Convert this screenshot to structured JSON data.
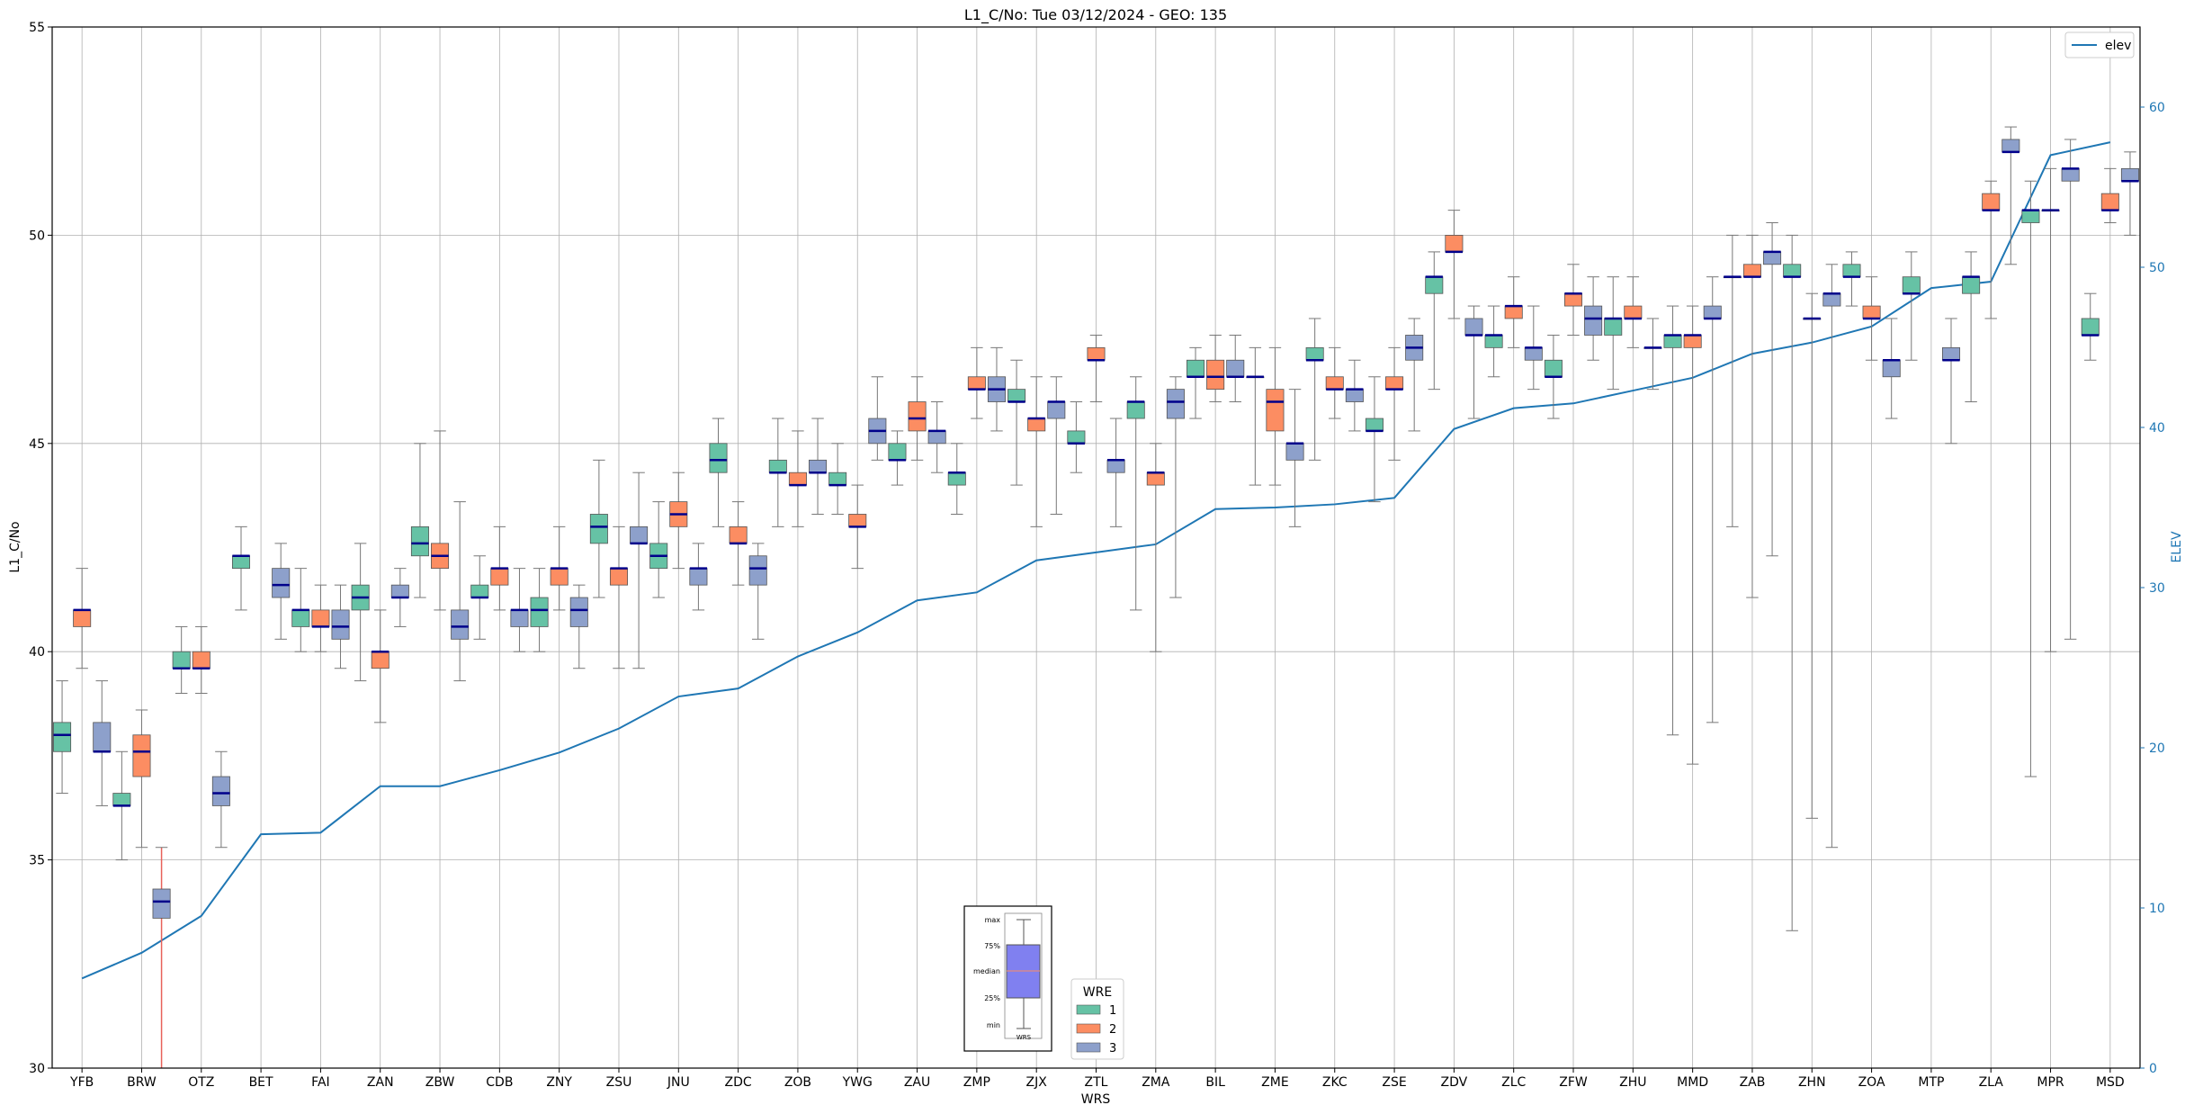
{
  "chart_data": {
    "type": "boxplot",
    "title": "L1_C/No: Tue 03/12/2024 - GEO: 135",
    "xlabel": "WRS",
    "ylabel": "L1_C/No",
    "y2label": "ELEV",
    "ylim": [
      30,
      55
    ],
    "y2lim": [
      0,
      65
    ],
    "yticks": [
      30,
      35,
      40,
      45,
      50,
      55
    ],
    "y2ticks": [
      0,
      10,
      20,
      30,
      40,
      50,
      60
    ],
    "grid": true,
    "categories": [
      "YFB",
      "BRW",
      "OTZ",
      "BET",
      "FAI",
      "ZAN",
      "ZBW",
      "CDB",
      "ZNY",
      "ZSU",
      "JNU",
      "ZDC",
      "ZOB",
      "YWG",
      "ZAU",
      "ZMP",
      "ZJX",
      "ZTL",
      "ZMA",
      "BIL",
      "ZME",
      "ZKC",
      "ZSE",
      "ZDV",
      "ZLC",
      "ZFW",
      "ZHU",
      "MMD",
      "ZAB",
      "ZHN",
      "ZOA",
      "MTP",
      "ZLA",
      "MPR",
      "MSD"
    ],
    "wre_colors": {
      "1": "#66c2a5",
      "2": "#fc8d62",
      "3": "#8da0cb"
    },
    "boxes": [
      {
        "cat": "YFB",
        "wre": 1,
        "min": 36.6,
        "q1": 37.6,
        "med": 38.0,
        "q3": 38.3,
        "max": 39.3
      },
      {
        "cat": "YFB",
        "wre": 2,
        "min": 39.6,
        "q1": 40.6,
        "med": 41.0,
        "q3": 41.0,
        "max": 42.0
      },
      {
        "cat": "YFB",
        "wre": 3,
        "min": 36.3,
        "q1": 37.6,
        "med": 37.6,
        "q3": 38.3,
        "max": 39.3
      },
      {
        "cat": "BRW",
        "wre": 1,
        "min": 35.0,
        "q1": 36.3,
        "med": 36.3,
        "q3": 36.6,
        "max": 37.6
      },
      {
        "cat": "BRW",
        "wre": 2,
        "min": 35.3,
        "q1": 37.0,
        "med": 37.6,
        "q3": 38.0,
        "max": 38.6
      },
      {
        "cat": "BRW",
        "wre": 3,
        "min": 30.0,
        "q1": 33.6,
        "med": 34.0,
        "q3": 34.3,
        "max": 35.3,
        "outlier": true
      },
      {
        "cat": "OTZ",
        "wre": 1,
        "min": 39.0,
        "q1": 39.6,
        "med": 39.6,
        "q3": 40.0,
        "max": 40.6
      },
      {
        "cat": "OTZ",
        "wre": 2,
        "min": 39.0,
        "q1": 39.6,
        "med": 39.6,
        "q3": 40.0,
        "max": 40.6
      },
      {
        "cat": "OTZ",
        "wre": 3,
        "min": 35.3,
        "q1": 36.3,
        "med": 36.6,
        "q3": 37.0,
        "max": 37.6
      },
      {
        "cat": "BET",
        "wre": 1,
        "min": 41.0,
        "q1": 42.0,
        "med": 42.3,
        "q3": 42.3,
        "max": 43.0
      },
      {
        "cat": "BET",
        "wre": 3,
        "min": 40.3,
        "q1": 41.3,
        "med": 41.6,
        "q3": 42.0,
        "max": 42.6
      },
      {
        "cat": "FAI",
        "wre": 1,
        "min": 40.0,
        "q1": 40.6,
        "med": 41.0,
        "q3": 41.0,
        "max": 42.0
      },
      {
        "cat": "FAI",
        "wre": 2,
        "min": 40.0,
        "q1": 40.6,
        "med": 40.6,
        "q3": 41.0,
        "max": 41.6
      },
      {
        "cat": "FAI",
        "wre": 3,
        "min": 39.6,
        "q1": 40.3,
        "med": 40.6,
        "q3": 41.0,
        "max": 41.6
      },
      {
        "cat": "ZAN",
        "wre": 1,
        "min": 39.3,
        "q1": 41.0,
        "med": 41.3,
        "q3": 41.6,
        "max": 42.6
      },
      {
        "cat": "ZAN",
        "wre": 2,
        "min": 38.3,
        "q1": 39.6,
        "med": 40.0,
        "q3": 40.0,
        "max": 41.0
      },
      {
        "cat": "ZAN",
        "wre": 3,
        "min": 40.6,
        "q1": 41.3,
        "med": 41.3,
        "q3": 41.6,
        "max": 42.0
      },
      {
        "cat": "ZBW",
        "wre": 1,
        "min": 41.3,
        "q1": 42.3,
        "med": 42.6,
        "q3": 43.0,
        "max": 45.0
      },
      {
        "cat": "ZBW",
        "wre": 2,
        "min": 41.0,
        "q1": 42.0,
        "med": 42.3,
        "q3": 42.6,
        "max": 45.3
      },
      {
        "cat": "ZBW",
        "wre": 3,
        "min": 39.3,
        "q1": 40.3,
        "med": 40.6,
        "q3": 41.0,
        "max": 43.6
      },
      {
        "cat": "CDB",
        "wre": 1,
        "min": 40.3,
        "q1": 41.3,
        "med": 41.3,
        "q3": 41.6,
        "max": 42.3
      },
      {
        "cat": "CDB",
        "wre": 2,
        "min": 41.0,
        "q1": 41.6,
        "med": 42.0,
        "q3": 42.0,
        "max": 43.0
      },
      {
        "cat": "CDB",
        "wre": 3,
        "min": 40.0,
        "q1": 40.6,
        "med": 41.0,
        "q3": 41.0,
        "max": 42.0
      },
      {
        "cat": "ZNY",
        "wre": 1,
        "min": 40.0,
        "q1": 40.6,
        "med": 41.0,
        "q3": 41.3,
        "max": 42.0
      },
      {
        "cat": "ZNY",
        "wre": 2,
        "min": 41.0,
        "q1": 41.6,
        "med": 42.0,
        "q3": 42.0,
        "max": 43.0
      },
      {
        "cat": "ZNY",
        "wre": 3,
        "min": 39.6,
        "q1": 40.6,
        "med": 41.0,
        "q3": 41.3,
        "max": 41.6
      },
      {
        "cat": "ZSU",
        "wre": 1,
        "min": 41.3,
        "q1": 42.6,
        "med": 43.0,
        "q3": 43.3,
        "max": 44.6
      },
      {
        "cat": "ZSU",
        "wre": 2,
        "min": 39.6,
        "q1": 41.6,
        "med": 42.0,
        "q3": 42.0,
        "max": 43.0
      },
      {
        "cat": "ZSU",
        "wre": 3,
        "min": 39.6,
        "q1": 42.6,
        "med": 42.6,
        "q3": 43.0,
        "max": 44.3
      },
      {
        "cat": "JNU",
        "wre": 1,
        "min": 41.3,
        "q1": 42.0,
        "med": 42.3,
        "q3": 42.6,
        "max": 43.6
      },
      {
        "cat": "JNU",
        "wre": 2,
        "min": 42.0,
        "q1": 43.0,
        "med": 43.3,
        "q3": 43.6,
        "max": 44.3
      },
      {
        "cat": "JNU",
        "wre": 3,
        "min": 41.0,
        "q1": 41.6,
        "med": 42.0,
        "q3": 42.0,
        "max": 42.6
      },
      {
        "cat": "ZDC",
        "wre": 1,
        "min": 43.0,
        "q1": 44.3,
        "med": 44.6,
        "q3": 45.0,
        "max": 45.6
      },
      {
        "cat": "ZDC",
        "wre": 2,
        "min": 41.6,
        "q1": 42.6,
        "med": 42.6,
        "q3": 43.0,
        "max": 43.6
      },
      {
        "cat": "ZDC",
        "wre": 3,
        "min": 40.3,
        "q1": 41.6,
        "med": 42.0,
        "q3": 42.3,
        "max": 42.6
      },
      {
        "cat": "ZOB",
        "wre": 1,
        "min": 43.0,
        "q1": 44.3,
        "med": 44.3,
        "q3": 44.6,
        "max": 45.6
      },
      {
        "cat": "ZOB",
        "wre": 2,
        "min": 43.0,
        "q1": 44.0,
        "med": 44.0,
        "q3": 44.3,
        "max": 45.3
      },
      {
        "cat": "ZOB",
        "wre": 3,
        "min": 43.3,
        "q1": 44.3,
        "med": 44.3,
        "q3": 44.6,
        "max": 45.6
      },
      {
        "cat": "YWG",
        "wre": 1,
        "min": 43.3,
        "q1": 44.0,
        "med": 44.0,
        "q3": 44.3,
        "max": 45.0
      },
      {
        "cat": "YWG",
        "wre": 2,
        "min": 42.0,
        "q1": 43.0,
        "med": 43.0,
        "q3": 43.3,
        "max": 44.0
      },
      {
        "cat": "YWG",
        "wre": 3,
        "min": 44.6,
        "q1": 45.0,
        "med": 45.3,
        "q3": 45.6,
        "max": 46.6
      },
      {
        "cat": "ZAU",
        "wre": 1,
        "min": 44.0,
        "q1": 44.6,
        "med": 44.6,
        "q3": 45.0,
        "max": 45.3
      },
      {
        "cat": "ZAU",
        "wre": 2,
        "min": 44.6,
        "q1": 45.3,
        "med": 45.6,
        "q3": 46.0,
        "max": 46.6
      },
      {
        "cat": "ZAU",
        "wre": 3,
        "min": 44.3,
        "q1": 45.0,
        "med": 45.3,
        "q3": 45.3,
        "max": 46.0
      },
      {
        "cat": "ZMP",
        "wre": 1,
        "min": 43.3,
        "q1": 44.0,
        "med": 44.3,
        "q3": 44.3,
        "max": 45.0
      },
      {
        "cat": "ZMP",
        "wre": 2,
        "min": 45.6,
        "q1": 46.3,
        "med": 46.3,
        "q3": 46.6,
        "max": 47.3
      },
      {
        "cat": "ZMP",
        "wre": 3,
        "min": 45.3,
        "q1": 46.0,
        "med": 46.3,
        "q3": 46.6,
        "max": 47.3
      },
      {
        "cat": "ZJX",
        "wre": 1,
        "min": 44.0,
        "q1": 46.0,
        "med": 46.0,
        "q3": 46.3,
        "max": 47.0
      },
      {
        "cat": "ZJX",
        "wre": 2,
        "min": 43.0,
        "q1": 45.3,
        "med": 45.6,
        "q3": 45.6,
        "max": 46.6
      },
      {
        "cat": "ZJX",
        "wre": 3,
        "min": 43.3,
        "q1": 45.6,
        "med": 46.0,
        "q3": 46.0,
        "max": 46.6
      },
      {
        "cat": "ZTL",
        "wre": 1,
        "min": 44.3,
        "q1": 45.0,
        "med": 45.0,
        "q3": 45.3,
        "max": 46.0
      },
      {
        "cat": "ZTL",
        "wre": 2,
        "min": 46.0,
        "q1": 47.0,
        "med": 47.0,
        "q3": 47.3,
        "max": 47.6
      },
      {
        "cat": "ZTL",
        "wre": 3,
        "min": 43.0,
        "q1": 44.3,
        "med": 44.6,
        "q3": 44.6,
        "max": 45.6
      },
      {
        "cat": "ZMA",
        "wre": 1,
        "min": 41.0,
        "q1": 45.6,
        "med": 46.0,
        "q3": 46.0,
        "max": 46.6
      },
      {
        "cat": "ZMA",
        "wre": 2,
        "min": 40.0,
        "q1": 44.0,
        "med": 44.3,
        "q3": 44.3,
        "max": 45.0
      },
      {
        "cat": "ZMA",
        "wre": 3,
        "min": 41.3,
        "q1": 45.6,
        "med": 46.0,
        "q3": 46.3,
        "max": 46.6
      },
      {
        "cat": "BIL",
        "wre": 1,
        "min": 45.6,
        "q1": 46.6,
        "med": 46.6,
        "q3": 47.0,
        "max": 47.3
      },
      {
        "cat": "BIL",
        "wre": 2,
        "min": 46.0,
        "q1": 46.3,
        "med": 46.6,
        "q3": 47.0,
        "max": 47.6
      },
      {
        "cat": "BIL",
        "wre": 3,
        "min": 46.0,
        "q1": 46.6,
        "med": 46.6,
        "q3": 47.0,
        "max": 47.6
      },
      {
        "cat": "ZME",
        "wre": 1,
        "min": 44.0,
        "q1": 46.6,
        "med": 46.6,
        "q3": 46.6,
        "max": 47.3
      },
      {
        "cat": "ZME",
        "wre": 2,
        "min": 44.0,
        "q1": 45.3,
        "med": 46.0,
        "q3": 46.3,
        "max": 47.3
      },
      {
        "cat": "ZME",
        "wre": 3,
        "min": 43.0,
        "q1": 44.6,
        "med": 45.0,
        "q3": 45.0,
        "max": 46.3
      },
      {
        "cat": "ZKC",
        "wre": 1,
        "min": 44.6,
        "q1": 47.0,
        "med": 47.0,
        "q3": 47.3,
        "max": 48.0
      },
      {
        "cat": "ZKC",
        "wre": 2,
        "min": 45.6,
        "q1": 46.3,
        "med": 46.3,
        "q3": 46.6,
        "max": 47.3
      },
      {
        "cat": "ZKC",
        "wre": 3,
        "min": 45.3,
        "q1": 46.0,
        "med": 46.3,
        "q3": 46.3,
        "max": 47.0
      },
      {
        "cat": "ZSE",
        "wre": 1,
        "min": 43.6,
        "q1": 45.3,
        "med": 45.3,
        "q3": 45.6,
        "max": 46.6
      },
      {
        "cat": "ZSE",
        "wre": 2,
        "min": 44.6,
        "q1": 46.3,
        "med": 46.3,
        "q3": 46.6,
        "max": 47.3
      },
      {
        "cat": "ZSE",
        "wre": 3,
        "min": 45.3,
        "q1": 47.0,
        "med": 47.3,
        "q3": 47.6,
        "max": 48.0
      },
      {
        "cat": "ZDV",
        "wre": 1,
        "min": 46.3,
        "q1": 48.6,
        "med": 49.0,
        "q3": 49.0,
        "max": 49.6
      },
      {
        "cat": "ZDV",
        "wre": 2,
        "min": 48.0,
        "q1": 49.6,
        "med": 49.6,
        "q3": 50.0,
        "max": 50.6
      },
      {
        "cat": "ZDV",
        "wre": 3,
        "min": 45.6,
        "q1": 47.6,
        "med": 47.6,
        "q3": 48.0,
        "max": 48.3
      },
      {
        "cat": "ZLC",
        "wre": 1,
        "min": 46.6,
        "q1": 47.3,
        "med": 47.6,
        "q3": 47.6,
        "max": 48.3
      },
      {
        "cat": "ZLC",
        "wre": 2,
        "min": 47.3,
        "q1": 48.0,
        "med": 48.3,
        "q3": 48.3,
        "max": 49.0
      },
      {
        "cat": "ZLC",
        "wre": 3,
        "min": 46.3,
        "q1": 47.0,
        "med": 47.3,
        "q3": 47.3,
        "max": 48.3
      },
      {
        "cat": "ZFW",
        "wre": 1,
        "min": 45.6,
        "q1": 46.6,
        "med": 46.6,
        "q3": 47.0,
        "max": 47.6
      },
      {
        "cat": "ZFW",
        "wre": 2,
        "min": 47.6,
        "q1": 48.3,
        "med": 48.6,
        "q3": 48.6,
        "max": 49.3
      },
      {
        "cat": "ZFW",
        "wre": 3,
        "min": 47.0,
        "q1": 47.6,
        "med": 48.0,
        "q3": 48.3,
        "max": 49.0
      },
      {
        "cat": "ZHU",
        "wre": 1,
        "min": 46.3,
        "q1": 47.6,
        "med": 48.0,
        "q3": 48.0,
        "max": 49.0
      },
      {
        "cat": "ZHU",
        "wre": 2,
        "min": 47.3,
        "q1": 48.0,
        "med": 48.0,
        "q3": 48.3,
        "max": 49.0
      },
      {
        "cat": "ZHU",
        "wre": 3,
        "min": 46.3,
        "q1": 47.3,
        "med": 47.3,
        "q3": 47.3,
        "max": 48.0
      },
      {
        "cat": "MMD",
        "wre": 1,
        "min": 38.0,
        "q1": 47.3,
        "med": 47.6,
        "q3": 47.6,
        "max": 48.3
      },
      {
        "cat": "MMD",
        "wre": 2,
        "min": 37.3,
        "q1": 47.3,
        "med": 47.6,
        "q3": 47.6,
        "max": 48.3
      },
      {
        "cat": "MMD",
        "wre": 3,
        "min": 38.3,
        "q1": 48.0,
        "med": 48.0,
        "q3": 48.3,
        "max": 49.0
      },
      {
        "cat": "ZAB",
        "wre": 1,
        "min": 43.0,
        "q1": 49.0,
        "med": 49.0,
        "q3": 49.0,
        "max": 50.0
      },
      {
        "cat": "ZAB",
        "wre": 2,
        "min": 41.3,
        "q1": 49.0,
        "med": 49.0,
        "q3": 49.3,
        "max": 50.0
      },
      {
        "cat": "ZAB",
        "wre": 3,
        "min": 42.3,
        "q1": 49.3,
        "med": 49.6,
        "q3": 49.6,
        "max": 50.3
      },
      {
        "cat": "ZHN",
        "wre": 1,
        "min": 33.3,
        "q1": 49.0,
        "med": 49.0,
        "q3": 49.3,
        "max": 50.0
      },
      {
        "cat": "ZHN",
        "wre": 2,
        "min": 36.0,
        "q1": 48.0,
        "med": 48.0,
        "q3": 48.0,
        "max": 48.6
      },
      {
        "cat": "ZHN",
        "wre": 3,
        "min": 35.3,
        "q1": 48.3,
        "med": 48.6,
        "q3": 48.6,
        "max": 49.3
      },
      {
        "cat": "ZOA",
        "wre": 1,
        "min": 48.3,
        "q1": 49.0,
        "med": 49.0,
        "q3": 49.3,
        "max": 49.6
      },
      {
        "cat": "ZOA",
        "wre": 2,
        "min": 47.0,
        "q1": 48.0,
        "med": 48.0,
        "q3": 48.3,
        "max": 49.0
      },
      {
        "cat": "ZOA",
        "wre": 3,
        "min": 45.6,
        "q1": 46.6,
        "med": 47.0,
        "q3": 47.0,
        "max": 48.0
      },
      {
        "cat": "MTP",
        "wre": 1,
        "min": 47.0,
        "q1": 48.6,
        "med": 48.6,
        "q3": 49.0,
        "max": 49.6
      },
      {
        "cat": "MTP",
        "wre": 3,
        "min": 45.0,
        "q1": 47.0,
        "med": 47.0,
        "q3": 47.3,
        "max": 48.0
      },
      {
        "cat": "ZLA",
        "wre": 1,
        "min": 46.0,
        "q1": 48.6,
        "med": 49.0,
        "q3": 49.0,
        "max": 49.6
      },
      {
        "cat": "ZLA",
        "wre": 2,
        "min": 48.0,
        "q1": 50.6,
        "med": 50.6,
        "q3": 51.0,
        "max": 51.3
      },
      {
        "cat": "ZLA",
        "wre": 3,
        "min": 49.3,
        "q1": 52.0,
        "med": 52.0,
        "q3": 52.3,
        "max": 52.6
      },
      {
        "cat": "MPR",
        "wre": 1,
        "min": 37.0,
        "q1": 50.3,
        "med": 50.6,
        "q3": 50.6,
        "max": 51.3
      },
      {
        "cat": "MPR",
        "wre": 2,
        "min": 40.0,
        "q1": 50.6,
        "med": 50.6,
        "q3": 50.6,
        "max": 51.6
      },
      {
        "cat": "MPR",
        "wre": 3,
        "min": 40.3,
        "q1": 51.3,
        "med": 51.6,
        "q3": 51.6,
        "max": 52.3
      },
      {
        "cat": "MSD",
        "wre": 1,
        "min": 47.0,
        "q1": 47.6,
        "med": 47.6,
        "q3": 48.0,
        "max": 48.6
      },
      {
        "cat": "MSD",
        "wre": 2,
        "min": 50.3,
        "q1": 50.6,
        "med": 50.6,
        "q3": 51.0,
        "max": 51.6
      },
      {
        "cat": "MSD",
        "wre": 3,
        "min": 50.0,
        "q1": 51.3,
        "med": 51.3,
        "q3": 51.6,
        "max": 52.0
      }
    ],
    "series": [
      {
        "name": "elev",
        "axis": "y2",
        "values": [
          5.6,
          7.2,
          9.5,
          14.6,
          14.7,
          17.6,
          17.6,
          18.6,
          19.7,
          21.2,
          23.2,
          23.7,
          25.7,
          27.2,
          29.2,
          29.7,
          31.7,
          32.2,
          32.7,
          34.9,
          35.0,
          35.2,
          35.6,
          39.9,
          41.2,
          41.5,
          42.3,
          43.1,
          44.6,
          45.3,
          46.3,
          48.7,
          49.1,
          57.0,
          57.8
        ]
      }
    ],
    "legend_series": {
      "placement": "top-right",
      "label": "elev"
    },
    "legend_wre": {
      "title": "WRE",
      "entries": [
        "1",
        "2",
        "3"
      ]
    },
    "key_box": {
      "labels": [
        "max",
        "75%",
        "median",
        "25%",
        "min"
      ],
      "xlabel": "WRS"
    }
  }
}
